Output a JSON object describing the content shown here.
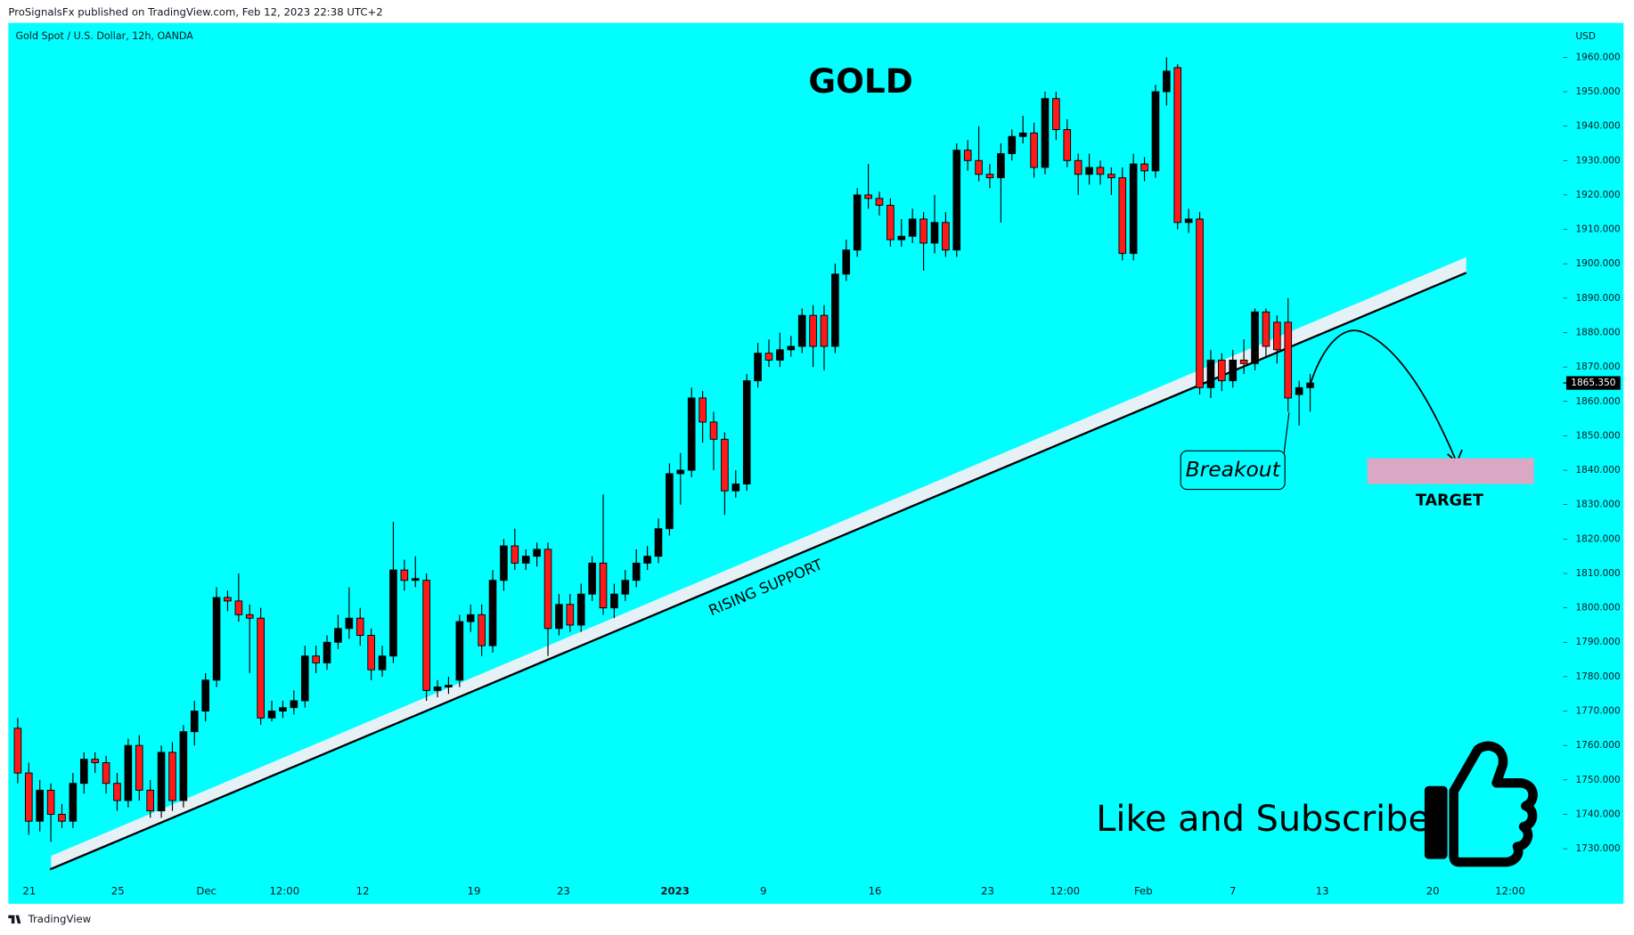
{
  "header": "ProSignalsFx published on TradingView.com, Feb 12, 2023 22:38 UTC+2",
  "footer": "TradingView",
  "chart_data": {
    "type": "candlestick",
    "symbol": "Gold Spot / U.S. Dollar, 12h, OANDA",
    "currency": "USD",
    "title": "GOLD",
    "annotations": {
      "support": "RISING SUPPORT",
      "breakout": "Breakout",
      "target": "TARGET",
      "promo": "Like and Subscribe"
    },
    "up_color": "#000000",
    "down_color": "#ff1a1a",
    "open": [
      1765,
      1752,
      1738,
      1747,
      1740,
      1738,
      1749,
      1756,
      1755,
      1749,
      1744,
      1760,
      1747,
      1741,
      1758,
      1744,
      1764,
      1770,
      1779,
      1803,
      1802,
      1798,
      1797,
      1768,
      1770,
      1771,
      1773,
      1786,
      1784,
      1790,
      1794,
      1797,
      1792,
      1782,
      1786,
      1811,
      1808,
      1808,
      1776,
      1777,
      1779,
      1796,
      1798,
      1789,
      1808,
      1818,
      1813,
      1815,
      1817,
      1794,
      1801,
      1795,
      1804,
      1813,
      1800,
      1804,
      1808,
      1813,
      1815,
      1823,
      1839,
      1840,
      1861,
      1854,
      1849,
      1834,
      1836,
      1866,
      1874,
      1872,
      1875,
      1876,
      1885,
      1885,
      1876,
      1897,
      1904,
      1920,
      1919,
      1917,
      1907,
      1908,
      1913,
      1906,
      1912,
      1904,
      1933,
      1930,
      1926,
      1925,
      1932,
      1937,
      1938,
      1928,
      1948,
      1939,
      1930,
      1926,
      1928,
      1926,
      1925,
      1903,
      1929,
      1927,
      1950,
      1957,
      1912,
      1913,
      1864,
      1872,
      1866,
      1872,
      1871,
      1886,
      1883,
      1883,
      1862,
      1864
    ],
    "high": [
      1768,
      1755,
      1750,
      1749,
      1743,
      1752,
      1758,
      1758,
      1757,
      1752,
      1762,
      1763,
      1750,
      1760,
      1761,
      1766,
      1773,
      1781,
      1806,
      1805,
      1810,
      1801,
      1800,
      1773,
      1773,
      1776,
      1789,
      1789,
      1792,
      1798,
      1806,
      1800,
      1794,
      1789,
      1825,
      1814,
      1815,
      1810,
      1779,
      1780,
      1798,
      1801,
      1801,
      1811,
      1820,
      1823,
      1817,
      1819,
      1819,
      1804,
      1804,
      1807,
      1815,
      1833,
      1807,
      1811,
      1817,
      1818,
      1826,
      1842,
      1845,
      1864,
      1863,
      1857,
      1851,
      1840,
      1868,
      1877,
      1878,
      1880,
      1879,
      1887,
      1888,
      1888,
      1900,
      1907,
      1922,
      1929,
      1921,
      1919,
      1913,
      1916,
      1915,
      1920,
      1915,
      1935,
      1936,
      1940,
      1929,
      1935,
      1939,
      1943,
      1941,
      1950,
      1950,
      1942,
      1932,
      1932,
      1930,
      1928,
      1928,
      1932,
      1931,
      1952,
      1960,
      1958,
      1916,
      1915,
      1875,
      1874,
      1875,
      1878,
      1887,
      1887,
      1885,
      1890,
      1866,
      1868
    ],
    "low": [
      1749,
      1734,
      1735,
      1732,
      1736,
      1736,
      1746,
      1752,
      1746,
      1741,
      1742,
      1744,
      1739,
      1739,
      1741,
      1742,
      1760,
      1767,
      1777,
      1799,
      1796,
      1781,
      1766,
      1767,
      1768,
      1769,
      1771,
      1781,
      1782,
      1788,
      1791,
      1789,
      1779,
      1780,
      1784,
      1805,
      1806,
      1773,
      1774,
      1775,
      1777,
      1793,
      1786,
      1787,
      1805,
      1811,
      1811,
      1812,
      1786,
      1792,
      1793,
      1793,
      1802,
      1798,
      1797,
      1802,
      1806,
      1811,
      1813,
      1821,
      1830,
      1838,
      1848,
      1840,
      1827,
      1832,
      1834,
      1864,
      1870,
      1870,
      1873,
      1874,
      1870,
      1869,
      1874,
      1895,
      1902,
      1916,
      1914,
      1905,
      1905,
      1906,
      1898,
      1903,
      1902,
      1902,
      1927,
      1924,
      1922,
      1912,
      1930,
      1935,
      1925,
      1926,
      1936,
      1928,
      1920,
      1923,
      1923,
      1920,
      1901,
      1901,
      1924,
      1925,
      1946,
      1910,
      1909,
      1862,
      1861,
      1863,
      1864,
      1868,
      1869,
      1873,
      1871,
      1857,
      1853,
      1857
    ],
    "close": [
      1752,
      1738,
      1747,
      1740,
      1738,
      1749,
      1756,
      1755,
      1749,
      1744,
      1760,
      1747,
      1741,
      1758,
      1744,
      1764,
      1770,
      1779,
      1803,
      1802,
      1798,
      1797,
      1768,
      1770,
      1771,
      1773,
      1786,
      1784,
      1790,
      1794,
      1797,
      1792,
      1782,
      1786,
      1811,
      1808,
      1808.5,
      1776,
      1777,
      1777.5,
      1796,
      1798,
      1789,
      1808,
      1818,
      1813,
      1815,
      1817,
      1794,
      1801,
      1795,
      1804,
      1813,
      1800,
      1804,
      1808,
      1813,
      1815,
      1823,
      1839,
      1840,
      1861,
      1854,
      1849,
      1834,
      1836,
      1866,
      1874,
      1872,
      1875,
      1876,
      1885,
      1876,
      1876,
      1897,
      1904,
      1920,
      1919,
      1917,
      1907,
      1908,
      1913,
      1906,
      1912,
      1904,
      1933,
      1930,
      1926,
      1925,
      1932,
      1937,
      1938,
      1928,
      1948,
      1939,
      1930,
      1926,
      1928,
      1926,
      1925,
      1903,
      1929,
      1927,
      1950,
      1956,
      1912,
      1913,
      1864,
      1872,
      1866,
      1872,
      1871,
      1886,
      1876,
      1875,
      1861,
      1864,
      1865.35
    ],
    "last_price_label": "1865.350",
    "xlim": [
      -0.85,
      139.9
    ],
    "xticks": [
      {
        "value": 1.04,
        "label": "21"
      },
      {
        "value": 9.06,
        "label": "25"
      },
      {
        "value": 17.08,
        "label": "Dec"
      },
      {
        "value": 24.15,
        "label": "12:00"
      },
      {
        "value": 31.23,
        "label": "12"
      },
      {
        "value": 41.3,
        "label": "19"
      },
      {
        "value": 49.4,
        "label": "23"
      },
      {
        "value": 59.5,
        "label": "2023"
      },
      {
        "value": 67.5,
        "label": "9"
      },
      {
        "value": 77.6,
        "label": "16"
      },
      {
        "value": 87.8,
        "label": "23"
      },
      {
        "value": 94.8,
        "label": "12:00"
      },
      {
        "value": 101.9,
        "label": "Feb"
      },
      {
        "value": 110,
        "label": "7"
      },
      {
        "value": 118.1,
        "label": "13"
      },
      {
        "value": 128.1,
        "label": "20"
      },
      {
        "value": 135.1,
        "label": "12:00"
      }
    ],
    "ylim": [
      1714,
      1970
    ],
    "yticks": [
      {
        "value": 1730,
        "label": "1730.000"
      },
      {
        "value": 1740,
        "label": "1740.000"
      },
      {
        "value": 1750,
        "label": "1750.000"
      },
      {
        "value": 1760,
        "label": "1760.000"
      },
      {
        "value": 1770,
        "label": "1770.000"
      },
      {
        "value": 1780,
        "label": "1780.000"
      },
      {
        "value": 1790,
        "label": "1790.000"
      },
      {
        "value": 1800,
        "label": "1800.000"
      },
      {
        "value": 1810,
        "label": "1810.000"
      },
      {
        "value": 1820,
        "label": "1820.000"
      },
      {
        "value": 1830,
        "label": "1830.000"
      },
      {
        "value": 1840,
        "label": "1840.000"
      },
      {
        "value": 1850,
        "label": "1850.000"
      },
      {
        "value": 1860,
        "label": "1860.000"
      },
      {
        "value": 1870,
        "label": "1870.000"
      },
      {
        "value": 1880,
        "label": "1880.000"
      },
      {
        "value": 1890,
        "label": "1890.000"
      },
      {
        "value": 1900,
        "label": "1900.000"
      },
      {
        "value": 1910,
        "label": "1910.000"
      },
      {
        "value": 1920,
        "label": "1920.000"
      },
      {
        "value": 1930,
        "label": "1930.000"
      },
      {
        "value": 1940,
        "label": "1940.000"
      },
      {
        "value": 1950,
        "label": "1950.000"
      },
      {
        "value": 1960,
        "label": "1960.000"
      }
    ],
    "grid": false
  }
}
